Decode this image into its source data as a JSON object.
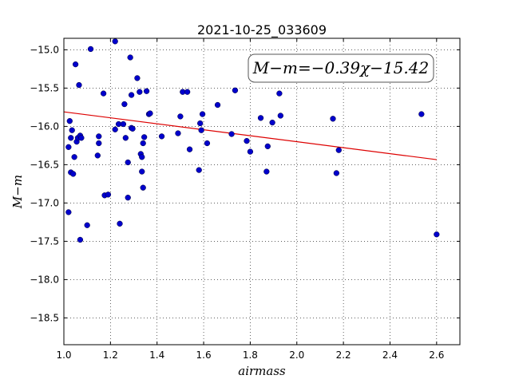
{
  "chart_data": {
    "type": "scatter",
    "title": "2021-10-25_033609",
    "xlabel": "airmass",
    "ylabel": "M−m",
    "annotation": "M−m=−0.39χ−15.42",
    "xlim": [
      1.0,
      2.7
    ],
    "ylim": [
      -18.85,
      -14.85
    ],
    "y_inverted": true,
    "grid": true,
    "point_color": "#0000cc",
    "fit_color": "#dd0000",
    "x_ticks": [
      "1.0",
      "1.2",
      "1.4",
      "1.6",
      "1.8",
      "2.0",
      "2.2",
      "2.4",
      "2.6"
    ],
    "x_tick_values": [
      1.0,
      1.2,
      1.4,
      1.6,
      1.8,
      2.0,
      2.2,
      2.4,
      2.6
    ],
    "y_ticks": [
      "−15.0",
      "−15.5",
      "−16.0",
      "−16.5",
      "−17.0",
      "−17.5",
      "−18.0",
      "−18.5"
    ],
    "y_tick_values": [
      -15.0,
      -15.5,
      -16.0,
      -16.5,
      -17.0,
      -17.5,
      -18.0,
      -18.5
    ],
    "fit": {
      "slope": -0.39,
      "intercept": -15.42,
      "x_range": [
        1.0,
        2.6
      ]
    },
    "points": [
      [
        1.02,
        -16.27
      ],
      [
        1.02,
        -17.12
      ],
      [
        1.025,
        -15.93
      ],
      [
        1.03,
        -16.15
      ],
      [
        1.03,
        -16.6
      ],
      [
        1.035,
        -16.05
      ],
      [
        1.04,
        -16.62
      ],
      [
        1.045,
        -16.4
      ],
      [
        1.05,
        -15.19
      ],
      [
        1.055,
        -16.2
      ],
      [
        1.06,
        -16.15
      ],
      [
        1.065,
        -15.46
      ],
      [
        1.07,
        -16.12
      ],
      [
        1.07,
        -17.48
      ],
      [
        1.075,
        -16.15
      ],
      [
        1.1,
        -17.29
      ],
      [
        1.115,
        -14.99
      ],
      [
        1.145,
        -16.38
      ],
      [
        1.15,
        -16.13
      ],
      [
        1.15,
        -16.22
      ],
      [
        1.17,
        -15.57
      ],
      [
        1.175,
        -16.9
      ],
      [
        1.19,
        -16.89
      ],
      [
        1.22,
        -16.04
      ],
      [
        1.22,
        -14.89
      ],
      [
        1.235,
        -15.97
      ],
      [
        1.24,
        -17.27
      ],
      [
        1.255,
        -15.97
      ],
      [
        1.26,
        -15.71
      ],
      [
        1.265,
        -16.15
      ],
      [
        1.275,
        -16.47
      ],
      [
        1.275,
        -16.93
      ],
      [
        1.285,
        -15.1
      ],
      [
        1.29,
        -15.59
      ],
      [
        1.29,
        -16.02
      ],
      [
        1.295,
        -16.03
      ],
      [
        1.315,
        -15.37
      ],
      [
        1.325,
        -15.55
      ],
      [
        1.33,
        -16.36
      ],
      [
        1.335,
        -16.59
      ],
      [
        1.335,
        -16.4
      ],
      [
        1.34,
        -16.22
      ],
      [
        1.34,
        -16.8
      ],
      [
        1.345,
        -16.14
      ],
      [
        1.355,
        -15.54
      ],
      [
        1.365,
        -15.84
      ],
      [
        1.37,
        -15.83
      ],
      [
        1.42,
        -16.13
      ],
      [
        1.49,
        -16.09
      ],
      [
        1.5,
        -15.87
      ],
      [
        1.51,
        -15.55
      ],
      [
        1.53,
        -15.55
      ],
      [
        1.54,
        -16.3
      ],
      [
        1.58,
        -16.57
      ],
      [
        1.585,
        -15.96
      ],
      [
        1.59,
        -16.05
      ],
      [
        1.595,
        -15.84
      ],
      [
        1.615,
        -16.22
      ],
      [
        1.66,
        -15.72
      ],
      [
        1.72,
        -16.1
      ],
      [
        1.735,
        -15.53
      ],
      [
        1.785,
        -16.19
      ],
      [
        1.8,
        -16.33
      ],
      [
        1.845,
        -15.89
      ],
      [
        1.87,
        -16.59
      ],
      [
        1.875,
        -16.26
      ],
      [
        1.895,
        -15.95
      ],
      [
        1.925,
        -15.57
      ],
      [
        1.93,
        -15.86
      ],
      [
        2.155,
        -15.9
      ],
      [
        2.17,
        -16.61
      ],
      [
        2.18,
        -16.31
      ],
      [
        2.535,
        -15.84
      ],
      [
        2.6,
        -17.41
      ]
    ]
  }
}
